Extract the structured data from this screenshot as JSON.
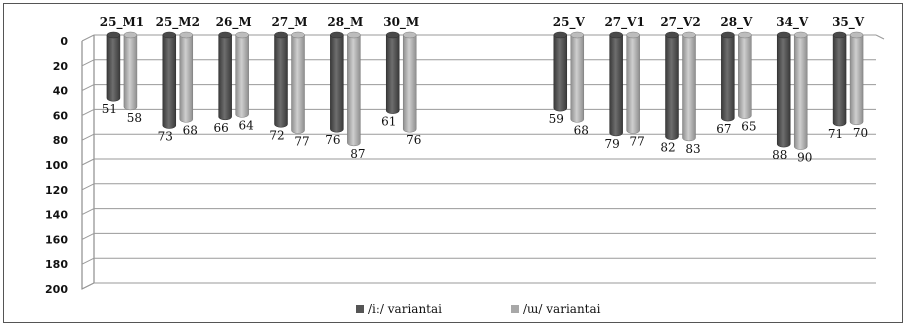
{
  "chart_data": {
    "type": "bar",
    "orientation": "vertical-inverted",
    "y_axis_inverted": true,
    "ylim": [
      0,
      200
    ],
    "yticks": [
      0,
      20,
      40,
      60,
      80,
      100,
      120,
      140,
      160,
      180,
      200
    ],
    "grid": true,
    "legend_position": "bottom",
    "categories": [
      "25_M1",
      "25_M2",
      "26_M",
      "27_M",
      "28_M",
      "30_M",
      "",
      "",
      "25_V",
      "27_V1",
      "27_V2",
      "28_V",
      "34_V",
      "35_V"
    ],
    "series": [
      {
        "name": "/iː/ variantai",
        "color": "#555555",
        "values": [
          51,
          73,
          66,
          72,
          76,
          61,
          null,
          null,
          59,
          79,
          82,
          67,
          88,
          71
        ]
      },
      {
        "name": "/ɯ/ variantai",
        "color": "#a8a8a8",
        "values": [
          58,
          68,
          64,
          77,
          87,
          76,
          null,
          null,
          68,
          77,
          83,
          65,
          90,
          70
        ]
      }
    ]
  }
}
